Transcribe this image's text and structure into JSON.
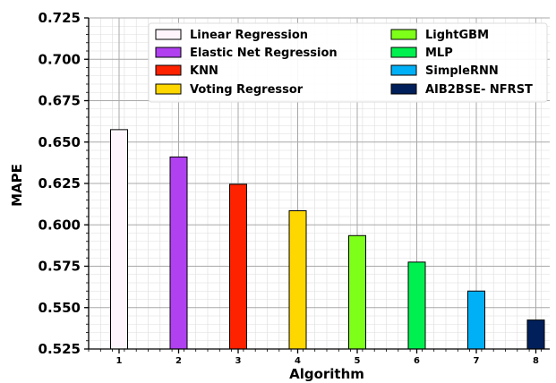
{
  "chart_data": {
    "type": "bar",
    "title": "",
    "xlabel": "Algorithm",
    "ylabel": "MAPE",
    "categories": [
      "1",
      "2",
      "3",
      "4",
      "5",
      "6",
      "7",
      "8"
    ],
    "ylim": [
      0.525,
      0.725
    ],
    "yticks": [
      "0.525",
      "0.550",
      "0.575",
      "0.600",
      "0.625",
      "0.650",
      "0.675",
      "0.700",
      "0.725"
    ],
    "grid": "major and minor",
    "legend_position": "top-right",
    "series": [
      {
        "name": "Linear Regression",
        "value": 0.6575,
        "color": "#fdf5fb"
      },
      {
        "name": "Elastic Net Regression",
        "value": 0.641,
        "color": "#b040f0"
      },
      {
        "name": "KNN",
        "value": 0.6245,
        "color": "#ff2200"
      },
      {
        "name": "Voting Regressor",
        "value": 0.6085,
        "color": "#ffd700"
      },
      {
        "name": "LightGBM",
        "value": 0.5935,
        "color": "#7dff1a"
      },
      {
        "name": "MLP",
        "value": 0.5775,
        "color": "#00f050"
      },
      {
        "name": "SimpleRNN",
        "value": 0.56,
        "color": "#00b0f6"
      },
      {
        "name": "AIB2BSE- NFRST",
        "value": 0.5425,
        "color": "#001f5b"
      }
    ]
  }
}
